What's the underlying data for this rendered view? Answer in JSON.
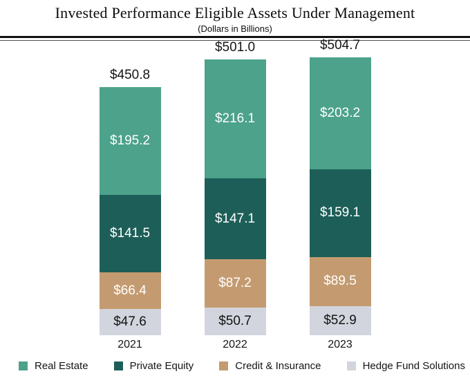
{
  "chart_data": {
    "type": "bar",
    "stacked": true,
    "title": "Invested Performance Eligible Assets Under Management",
    "subtitle": "(Dollars in Billions)",
    "categories": [
      "2021",
      "2022",
      "2023"
    ],
    "series": [
      {
        "name": "Real Estate",
        "color": "#4CA28B",
        "label_color": "#FFFFFF",
        "values": [
          195.2,
          216.1,
          203.2
        ]
      },
      {
        "name": "Private Equity",
        "color": "#1D5F58",
        "label_color": "#FFFFFF",
        "values": [
          141.5,
          147.1,
          159.1
        ]
      },
      {
        "name": "Credit & Insurance",
        "color": "#C49B70",
        "label_color": "#FFFFFF",
        "values": [
          66.4,
          87.2,
          89.5
        ]
      },
      {
        "name": "Hedge Fund Solutions",
        "color": "#D2D5DD",
        "label_color": "#141414",
        "values": [
          47.6,
          50.7,
          52.9
        ]
      }
    ],
    "totals": [
      "$450.8",
      "$501.0",
      "$504.7"
    ],
    "value_prefix": "$",
    "value_decimals": 1,
    "legend_position": "bottom",
    "grid": false,
    "axes_visible": false,
    "stack_order_top_to_bottom": [
      "Real Estate",
      "Private Equity",
      "Credit & Insurance",
      "Hedge Fund Solutions"
    ]
  }
}
